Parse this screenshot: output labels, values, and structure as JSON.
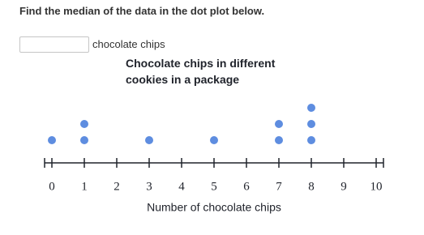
{
  "question": "Find the median of the data in the dot plot below.",
  "answer_unit": "chocolate chips",
  "chart_data": {
    "type": "dot",
    "title": "Chocolate chips in different cookies in a package",
    "xlabel": "Number of chocolate chips",
    "values": [
      0,
      1,
      1,
      3,
      5,
      7,
      7,
      8,
      8,
      8
    ],
    "xlim": [
      0,
      10
    ],
    "xticks": [
      0,
      1,
      2,
      3,
      4,
      5,
      6,
      7,
      8,
      9,
      10
    ],
    "color": "#5e8de0"
  }
}
